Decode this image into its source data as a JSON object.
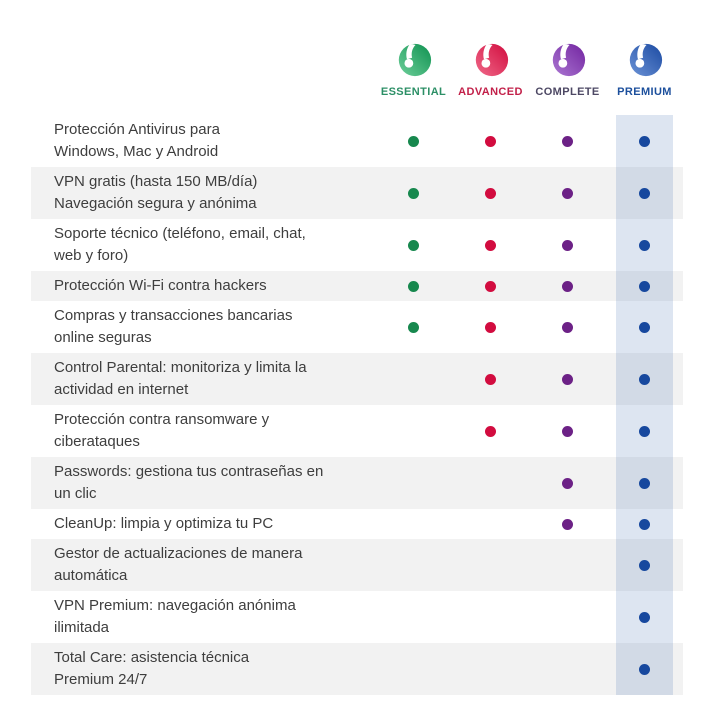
{
  "plans": [
    {
      "id": "essential",
      "label": "ESSENTIAL",
      "label_color": "#2c8f66",
      "dot_color": "#17884e",
      "logo_gradient_light": "#6ecf9a",
      "logo_gradient_dark": "#0e9150"
    },
    {
      "id": "advanced",
      "label": "ADVANCED",
      "label_color": "#c22049",
      "dot_color": "#d20c3f",
      "logo_gradient_light": "#f06a8a",
      "logo_gradient_dark": "#d10c3e"
    },
    {
      "id": "complete",
      "label": "COMPLETE",
      "label_color": "#4d4864",
      "dot_color": "#6c2186",
      "logo_gradient_light": "#ab77d2",
      "logo_gradient_dark": "#7224a0"
    },
    {
      "id": "premium",
      "label": "PREMIUM",
      "label_color": "#1c4f9c",
      "dot_color": "#17489e",
      "logo_gradient_light": "#6c93d6",
      "logo_gradient_dark": "#1b4aa2"
    }
  ],
  "features": [
    {
      "text": "Protección Antivirus para\nWindows, Mac y Android",
      "included": [
        true,
        true,
        true,
        true
      ]
    },
    {
      "text": "VPN gratis (hasta 150 MB/día)\nNavegación segura y anónima",
      "included": [
        true,
        true,
        true,
        true
      ]
    },
    {
      "text": "Soporte técnico (teléfono, email, chat,\nweb y foro)",
      "included": [
        true,
        true,
        true,
        true
      ]
    },
    {
      "text": "Protección Wi-Fi contra hackers",
      "included": [
        true,
        true,
        true,
        true
      ]
    },
    {
      "text": "Compras y transacciones bancarias\nonline seguras",
      "included": [
        true,
        true,
        true,
        true
      ]
    },
    {
      "text": "Control Parental: monitoriza y limita la\nactividad en internet",
      "included": [
        false,
        true,
        true,
        true
      ]
    },
    {
      "text": "Protección contra ransomware y\nciberataques",
      "included": [
        false,
        true,
        true,
        true
      ]
    },
    {
      "text": "Passwords: gestiona tus contraseñas en\nun clic",
      "included": [
        false,
        false,
        true,
        true
      ]
    },
    {
      "text": "CleanUp: limpia y optimiza tu PC",
      "included": [
        false,
        false,
        true,
        true
      ]
    },
    {
      "text": "Gestor de actualizaciones de manera\nautomática",
      "included": [
        false,
        false,
        false,
        true
      ]
    },
    {
      "text": "VPN Premium: navegación anónima\nilimitada",
      "included": [
        false,
        false,
        false,
        true
      ]
    },
    {
      "text": "Total Care: asistencia técnica\nPremium 24/7",
      "included": [
        false,
        false,
        false,
        true
      ]
    }
  ],
  "styles": {
    "row_alt_bg": "#f2f2f2",
    "text_color": "#3e3e3e",
    "premium_highlight": "rgba(28,79,160,0.15)",
    "background": "#ffffff"
  }
}
